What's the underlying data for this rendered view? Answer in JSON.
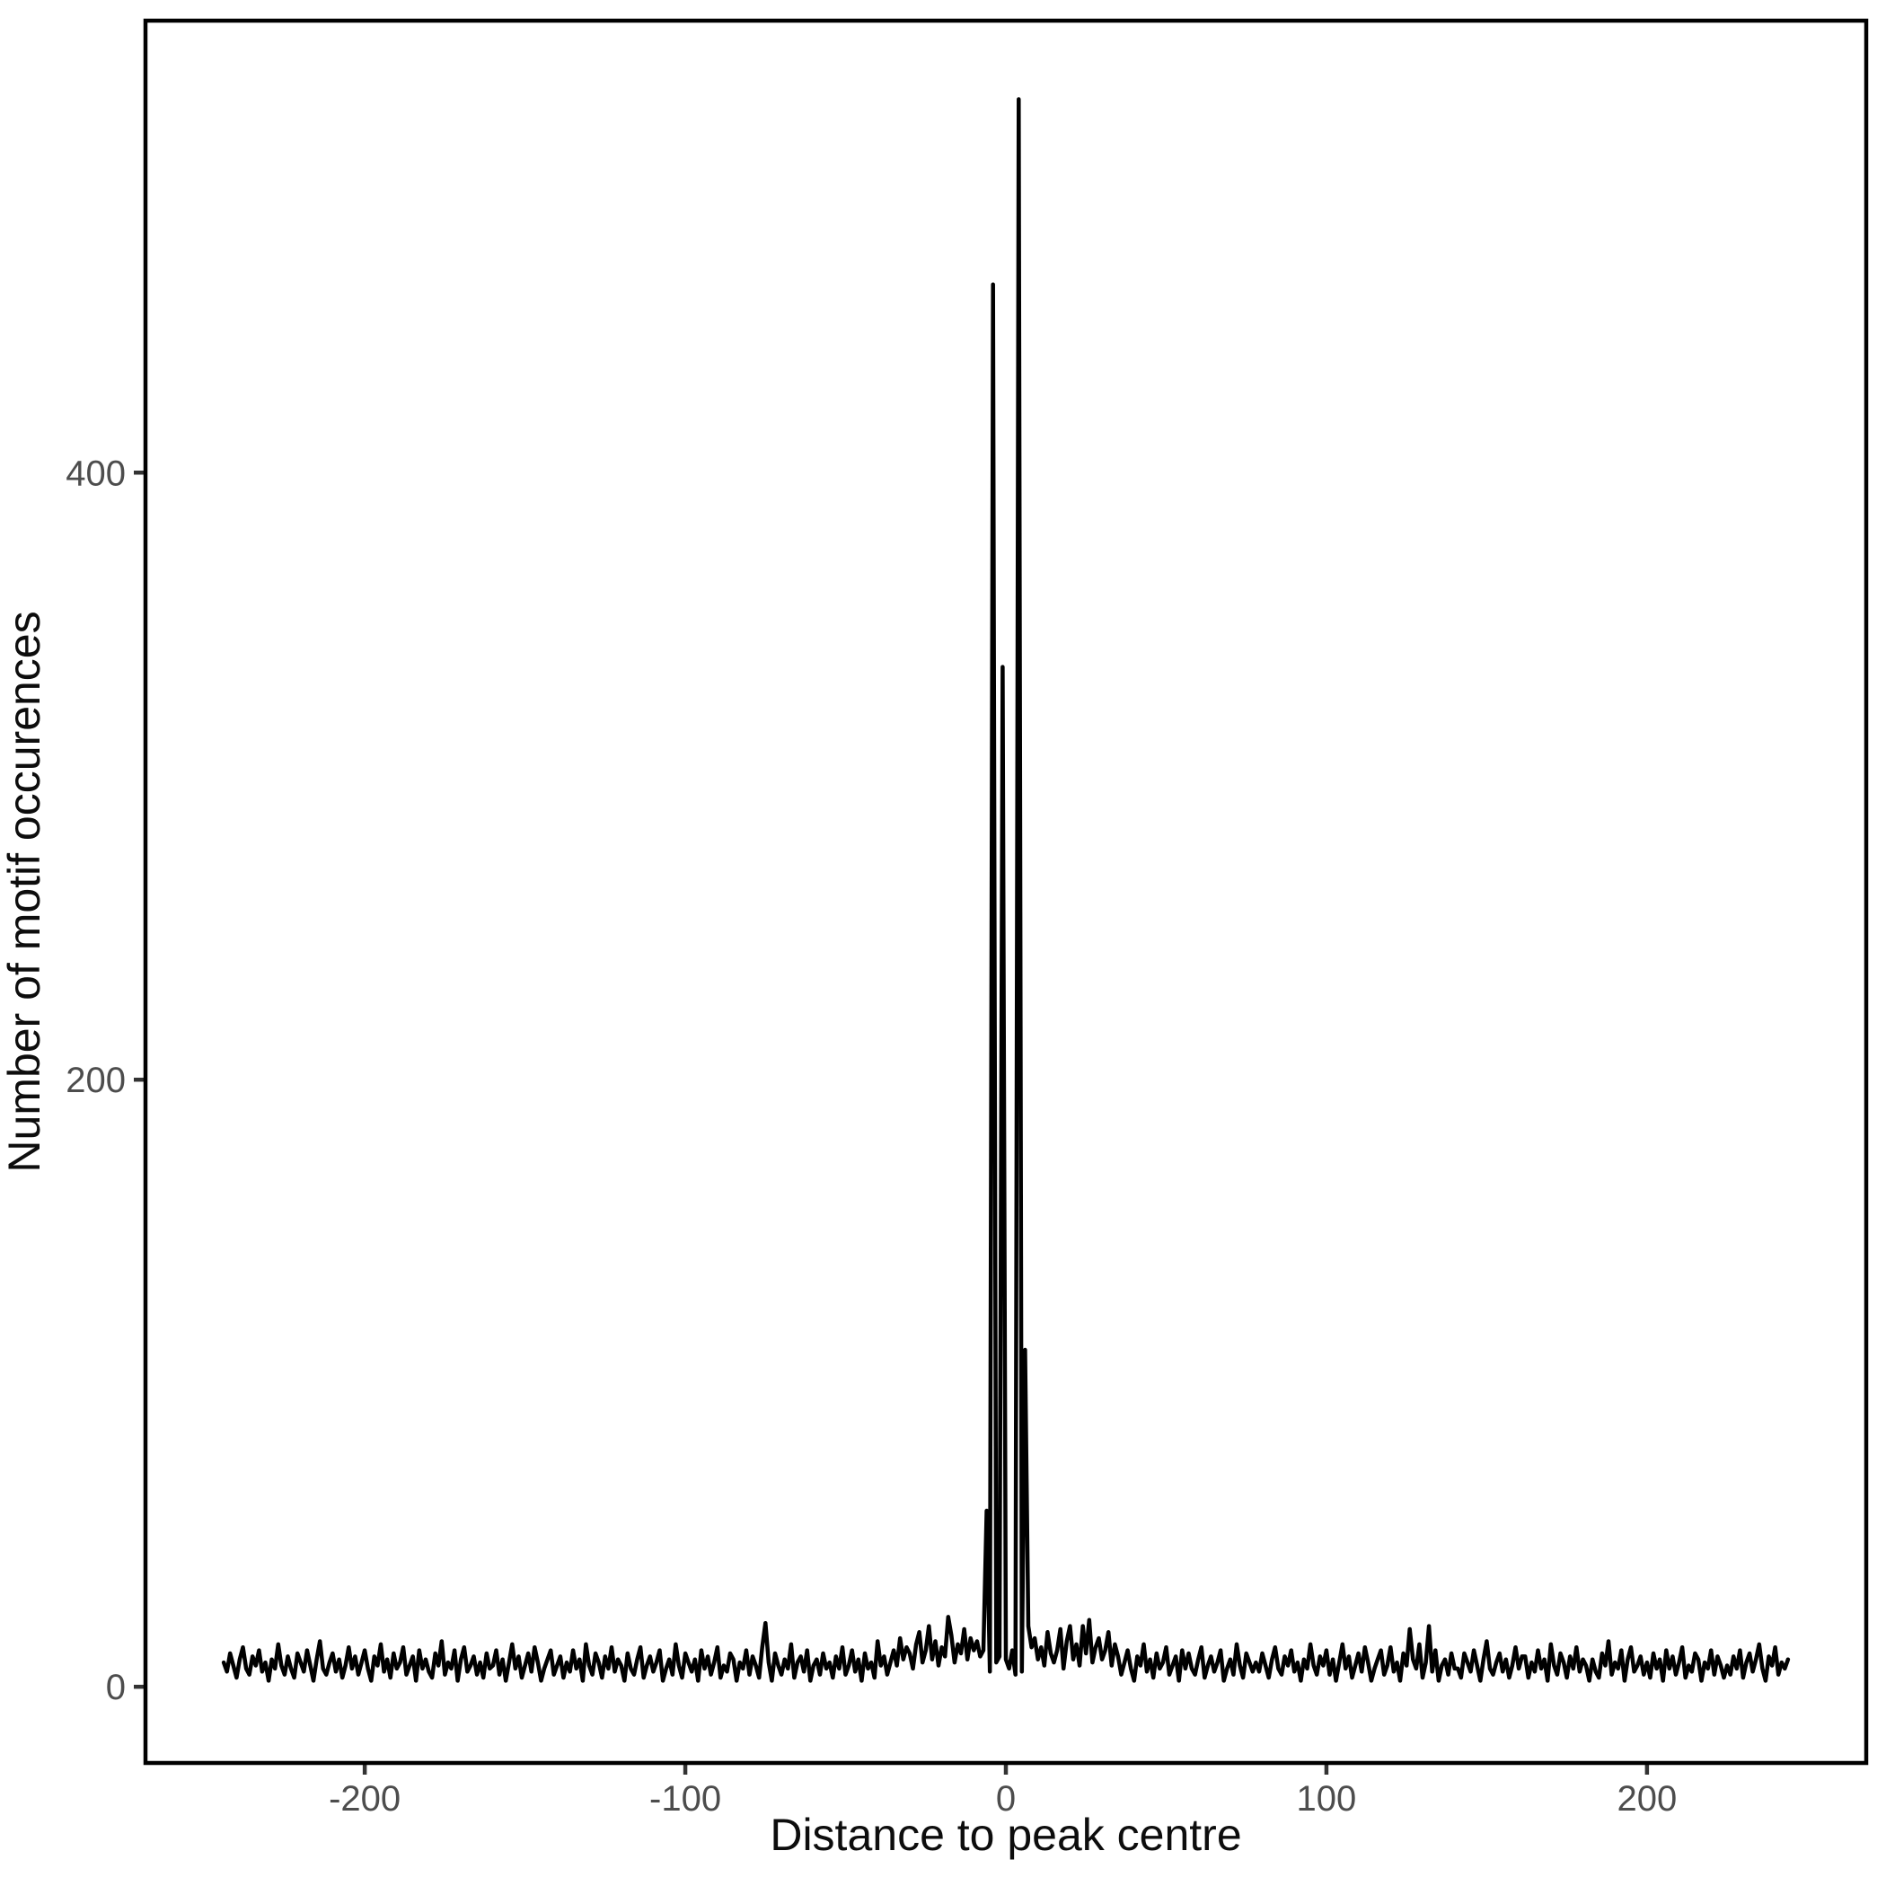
{
  "figure": {
    "background_color": "#FFFFFF",
    "panel_border_color": "#000000",
    "line_color": "#000000",
    "tick_mark_color": "#333333",
    "tick_label_color": "#4D4D4D",
    "axis_title_color": "#0D0D0D"
  },
  "chart_data": {
    "type": "line",
    "title": "",
    "xlabel": "Distance to peak centre",
    "ylabel": "Number of motif occurences",
    "grid": "off",
    "legend": "none",
    "xlim": [
      -268.4,
      268.4
    ],
    "ylim": [
      -25.1,
      548.9
    ],
    "x_ticks": {
      "values": [
        -200,
        -100,
        0,
        100,
        200
      ],
      "labels": [
        "-200",
        "-100",
        "0",
        "100",
        "200"
      ]
    },
    "y_ticks": {
      "values": [
        0,
        200,
        400
      ],
      "labels": [
        "0",
        "200",
        "400"
      ]
    },
    "x_start": -244,
    "x_step": 1,
    "notable_peaks": [
      {
        "x": -6,
        "y": 58
      },
      {
        "x": -4,
        "y": 462
      },
      {
        "x": -1,
        "y": 336
      },
      {
        "x": 4,
        "y": 523
      },
      {
        "x": 6,
        "y": 111
      }
    ],
    "series": [
      {
        "name": "motif occurences",
        "values": [
          8,
          5,
          11,
          7,
          3,
          9,
          13,
          6,
          4,
          10,
          7,
          12,
          5,
          8,
          2,
          9,
          6,
          14,
          7,
          4,
          10,
          6,
          3,
          11,
          8,
          5,
          12,
          7,
          2,
          9,
          15,
          6,
          4,
          8,
          11,
          5,
          9,
          3,
          7,
          13,
          6,
          10,
          4,
          8,
          12,
          6,
          2,
          10,
          7,
          14,
          5,
          9,
          3,
          11,
          6,
          8,
          13,
          4,
          7,
          10,
          2,
          12,
          6,
          9,
          5,
          3,
          11,
          7,
          15,
          4,
          8,
          6,
          12,
          2,
          9,
          13,
          5,
          7,
          10,
          4,
          8,
          3,
          11,
          6,
          7,
          12,
          4,
          9,
          2,
          8,
          14,
          6,
          10,
          3,
          7,
          11,
          5,
          13,
          8,
          2,
          6,
          9,
          12,
          4,
          7,
          10,
          3,
          8,
          5,
          12,
          6,
          9,
          2,
          14,
          7,
          4,
          11,
          8,
          3,
          10,
          6,
          13,
          5,
          9,
          7,
          2,
          11,
          6,
          4,
          9,
          13,
          3,
          7,
          10,
          5,
          8,
          12,
          2,
          6,
          9,
          4,
          14,
          7,
          3,
          11,
          8,
          5,
          9,
          2,
          12,
          6,
          10,
          4,
          8,
          13,
          3,
          7,
          5,
          11,
          9,
          2,
          8,
          6,
          12,
          4,
          10,
          7,
          3,
          13,
          21,
          8,
          2,
          11,
          7,
          4,
          9,
          6,
          14,
          3,
          8,
          10,
          5,
          12,
          2,
          7,
          9,
          4,
          11,
          6,
          8,
          3,
          10,
          6,
          13,
          4,
          7,
          12,
          5,
          9,
          2,
          11,
          6,
          8,
          3,
          15,
          7,
          10,
          4,
          8,
          12,
          7,
          16,
          9,
          13,
          11,
          6,
          14,
          18,
          8,
          12,
          20,
          9,
          15,
          7,
          13,
          10,
          23,
          17,
          8,
          14,
          11,
          19,
          9,
          16,
          12,
          15,
          10,
          12,
          58,
          5,
          462,
          8,
          10,
          336,
          9,
          6,
          12,
          4,
          523,
          5,
          111,
          20,
          13,
          16,
          9,
          13,
          7,
          18,
          11,
          8,
          12,
          19,
          6,
          15,
          20,
          9,
          14,
          7,
          20,
          11,
          22,
          8,
          13,
          16,
          9,
          12,
          18,
          7,
          14,
          10,
          4,
          8,
          12,
          6,
          2,
          10,
          7,
          14,
          5,
          9,
          3,
          11,
          6,
          8,
          13,
          4,
          7,
          10,
          2,
          12,
          6,
          11,
          6,
          4,
          9,
          13,
          3,
          7,
          10,
          5,
          8,
          12,
          2,
          6,
          9,
          4,
          14,
          7,
          3,
          11,
          8,
          5,
          8,
          5,
          11,
          7,
          3,
          9,
          13,
          6,
          4,
          10,
          7,
          12,
          5,
          8,
          2,
          9,
          6,
          14,
          7,
          4,
          10,
          7,
          12,
          4,
          9,
          2,
          8,
          14,
          6,
          10,
          3,
          7,
          11,
          5,
          13,
          8,
          2,
          6,
          9,
          12,
          4,
          7,
          13,
          5,
          8,
          2,
          11,
          7,
          19,
          9,
          6,
          14,
          3,
          8,
          20,
          5,
          12,
          2,
          7,
          9,
          4,
          11,
          6,
          6,
          3,
          11,
          8,
          5,
          12,
          7,
          2,
          9,
          15,
          6,
          4,
          8,
          11,
          5,
          9,
          3,
          7,
          13,
          6,
          10,
          10,
          3,
          8,
          5,
          12,
          6,
          9,
          2,
          14,
          7,
          4,
          11,
          8,
          3,
          10,
          6,
          13,
          5,
          9,
          7,
          2,
          9,
          5,
          3,
          11,
          7,
          15,
          4,
          8,
          6,
          12,
          2,
          9,
          13,
          5,
          7,
          10,
          4,
          8,
          3,
          11,
          6,
          9,
          2,
          12,
          6,
          10,
          4,
          8,
          13,
          3,
          7,
          5,
          11,
          9,
          2,
          8,
          6,
          12,
          4,
          10,
          7,
          3,
          7,
          4,
          10,
          6,
          12,
          3,
          8,
          11,
          5,
          9,
          14,
          6,
          2,
          10,
          7,
          13,
          4,
          8,
          6,
          9
        ]
      }
    ]
  }
}
